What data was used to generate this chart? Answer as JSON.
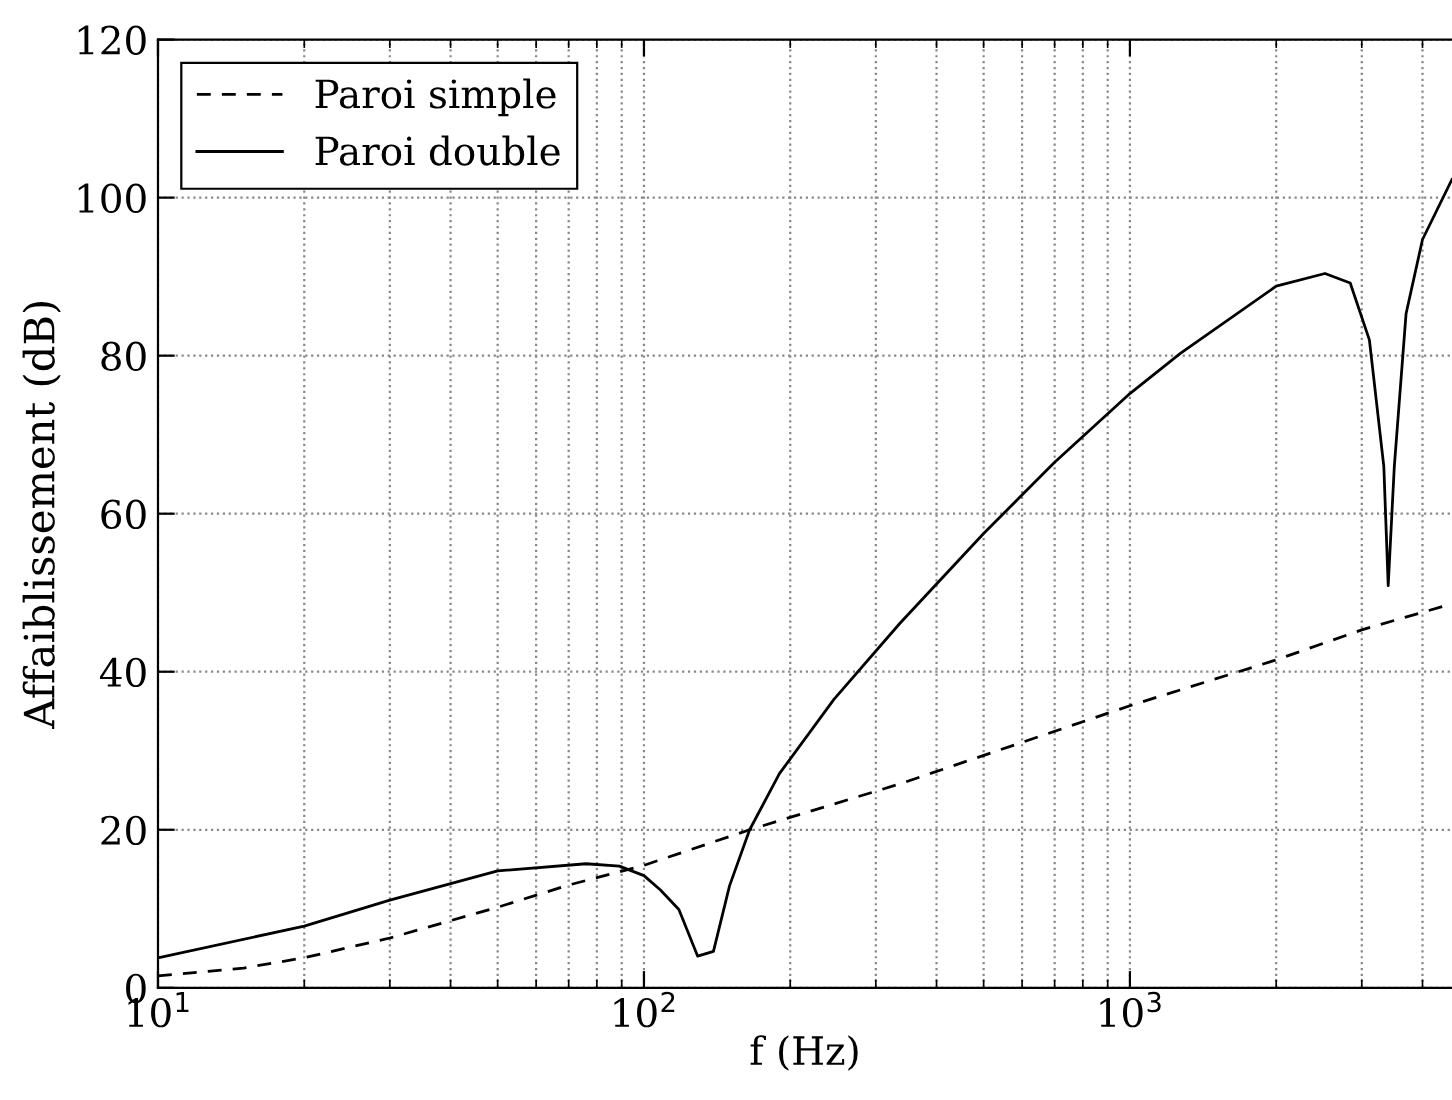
{
  "chart_data": {
    "type": "line",
    "xlabel": "f (Hz)",
    "ylabel": "Affaiblissement (dB)",
    "log": "x",
    "xlim": [
      10,
      4600
    ],
    "ylim": [
      0,
      120
    ],
    "xticks": [
      {
        "value": 10,
        "label": "10$^{1}$"
      },
      {
        "value": 100,
        "label": "10$^{2}$"
      },
      {
        "value": 1000,
        "label": "10$^{3}$"
      }
    ],
    "yticks": [
      0,
      20,
      40,
      60,
      80,
      100,
      120
    ],
    "grid": true,
    "legend": "top left",
    "series": [
      {
        "name": "Paroi simple",
        "color": "#000000",
        "line_style": "dashed",
        "x": [
          10,
          15,
          20,
          30,
          50,
          70,
          100,
          165,
          336,
          1000,
          2000,
          3000,
          4600
        ],
        "values": [
          1.5,
          2.5,
          3.8,
          6.3,
          10.2,
          13,
          15.5,
          20,
          25.8,
          35.7,
          41.5,
          45.3,
          48.6
        ]
      },
      {
        "name": "Paroi double",
        "color": "#000000",
        "line_style": "solid",
        "x": [
          10,
          20,
          30,
          50,
          76,
          89,
          100,
          108,
          118,
          129,
          139,
          150,
          165,
          190,
          246,
          336,
          500,
          700,
          1000,
          1270,
          2000,
          2520,
          2840,
          3110,
          3330,
          3400,
          3500,
          3700,
          4000,
          4600
        ],
        "values": [
          3.8,
          7.8,
          11.1,
          14.8,
          15.7,
          15.4,
          14.2,
          12.4,
          9.9,
          4.0,
          4.6,
          12.9,
          20,
          27.1,
          36.5,
          46.1,
          57.5,
          66.5,
          75.2,
          80.3,
          88.8,
          90.4,
          89.2,
          82,
          66,
          50.9,
          66,
          85.3,
          94.7,
          102.3
        ]
      }
    ]
  }
}
